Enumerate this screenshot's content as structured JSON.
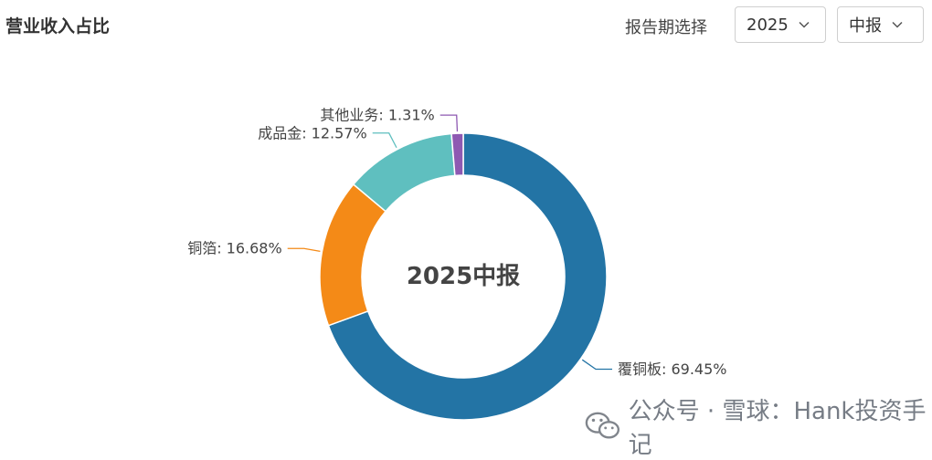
{
  "header": {
    "title": "营业收入占比",
    "period_label": "报告期选择",
    "year_select": {
      "value": "2025",
      "icon": "chevron-down-icon"
    },
    "period_select": {
      "value": "中报",
      "icon": "chevron-down-icon"
    }
  },
  "chart_data": {
    "type": "pie",
    "style": "donut",
    "center_label": "2025中报",
    "series": [
      {
        "name": "覆铜板",
        "value": 69.45,
        "label": "覆铜板: 69.45%",
        "color": "#2374a5"
      },
      {
        "name": "铜箔",
        "value": 16.68,
        "label": "铜箔: 16.68%",
        "color": "#f48a17"
      },
      {
        "name": "成品金",
        "value": 12.57,
        "label": "成品金: 12.57%",
        "color": "#5fbfbf"
      },
      {
        "name": "其他业务",
        "value": 1.31,
        "label": "其他业务: 1.31%",
        "color": "#8e59b2"
      }
    ]
  },
  "watermark": {
    "text": "公众号 · 雪球：Hank投资手记",
    "icon": "wechat-icon"
  }
}
